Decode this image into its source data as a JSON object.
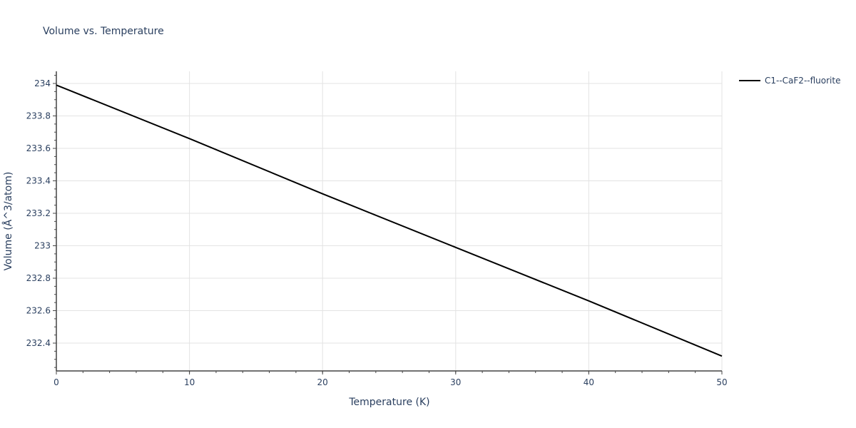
{
  "chart_data": {
    "type": "line",
    "title": "Volume vs. Temperature",
    "xlabel": "Temperature (K)",
    "ylabel": "Volume (Å^3/atom)",
    "xlim": [
      0,
      50
    ],
    "ylim": [
      232.23,
      234.08
    ],
    "x_ticks": [
      "0",
      "10",
      "20",
      "30",
      "40",
      "50"
    ],
    "y_ticks": [
      "232.4",
      "232.6",
      "232.8",
      "233",
      "233.2",
      "233.4",
      "233.6",
      "233.8",
      "234"
    ],
    "grid": true,
    "legend_position": "top-right outside",
    "series": [
      {
        "name": "C1--CaF2--fluorite",
        "color": "#000000",
        "x": [
          0,
          10,
          20,
          30,
          40,
          50
        ],
        "y": [
          233.99,
          233.66,
          233.32,
          232.99,
          232.66,
          232.32
        ]
      }
    ]
  }
}
